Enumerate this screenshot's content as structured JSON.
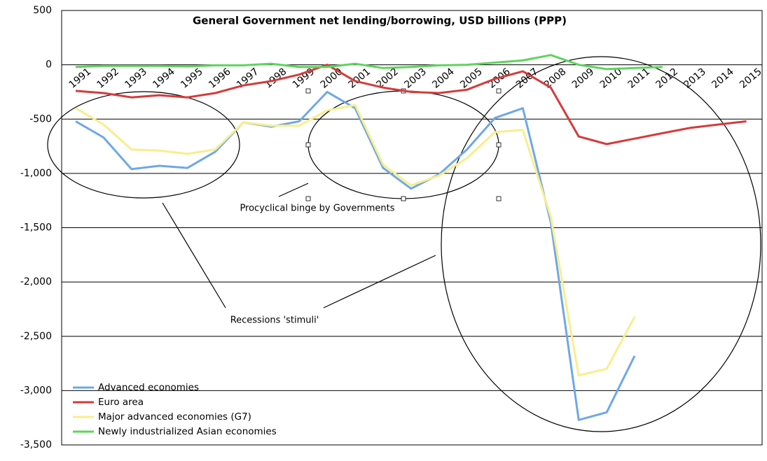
{
  "chart_data": {
    "type": "line",
    "title": "General Government net lending/borrowing, USD billions (PPP)",
    "x": [
      "1991",
      "1992",
      "1993",
      "1994",
      "1995",
      "1996",
      "1997",
      "1998",
      "1999",
      "2000",
      "2001",
      "2002",
      "2003",
      "2004",
      "2005",
      "2006",
      "2007",
      "2008",
      "2009",
      "2010",
      "2011",
      "2012",
      "2013",
      "2014",
      "2015"
    ],
    "series": [
      {
        "name": "Advanced economies",
        "color": "#6fa8e6",
        "values": [
          -520,
          -670,
          -960,
          -930,
          -950,
          -800,
          -530,
          -570,
          -520,
          -250,
          -400,
          -950,
          -1140,
          -1010,
          -780,
          -490,
          -400,
          -1450,
          -3270,
          -3200,
          -2680,
          null,
          null,
          null,
          null
        ]
      },
      {
        "name": "Euro area",
        "color": "#d63a3a",
        "values": [
          -240,
          -260,
          -300,
          -280,
          -300,
          -260,
          -190,
          -150,
          -90,
          0,
          -150,
          -210,
          -250,
          -260,
          -230,
          -130,
          -60,
          -210,
          -660,
          -730,
          -680,
          -630,
          -580,
          -550,
          -520
        ]
      },
      {
        "name": "Major advanced economies (G7)",
        "color": "#f8ee8c",
        "values": [
          -400,
          -550,
          -780,
          -790,
          -820,
          -780,
          -530,
          -560,
          -560,
          -420,
          -370,
          -920,
          -1110,
          -1020,
          -860,
          -620,
          -600,
          -1400,
          -2860,
          -2800,
          -2320,
          null,
          null,
          null,
          null
        ]
      },
      {
        "name": "Newly industrialized Asian economies",
        "color": "#5ed45e",
        "values": [
          -20,
          -10,
          -10,
          -10,
          -15,
          -5,
          -5,
          10,
          -20,
          -20,
          10,
          -30,
          -20,
          -5,
          0,
          20,
          40,
          90,
          0,
          -40,
          -30,
          -20,
          null,
          null,
          null
        ]
      }
    ],
    "ylim": [
      -3500,
      500
    ],
    "yticks": [
      500,
      0,
      -500,
      {
        "value": -1000,
        "label": "-1,000"
      },
      {
        "value": -1500,
        "label": "-1,500"
      },
      {
        "value": -2000,
        "label": "-2,000"
      },
      {
        "value": -2500,
        "label": "-2,500"
      },
      {
        "value": -3000,
        "label": "-3,000"
      },
      {
        "value": -3500,
        "label": "-3,500"
      }
    ],
    "grid": true,
    "legend": "lower-left",
    "annotations": [
      "Procyclical binge by Governments",
      "Recessions 'stimuli'"
    ]
  }
}
